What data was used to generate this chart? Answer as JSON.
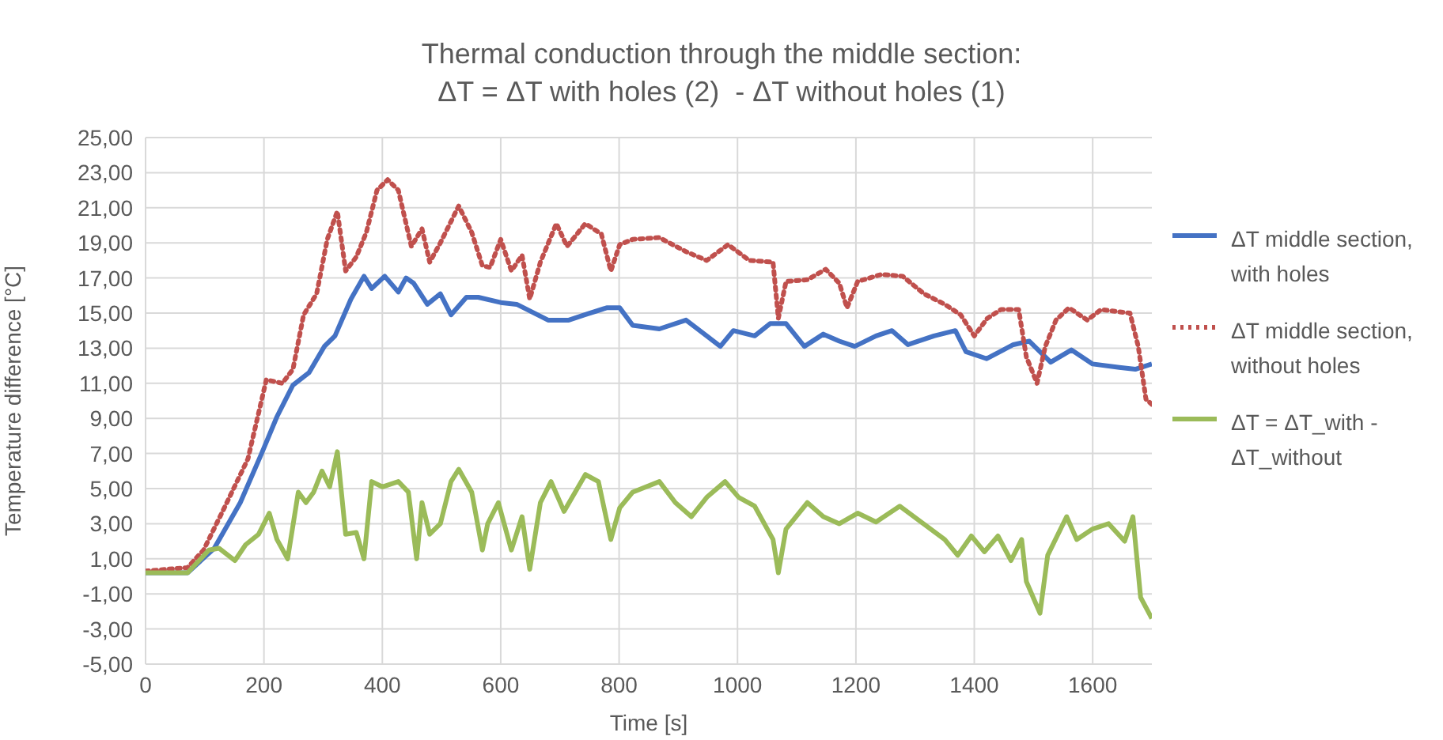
{
  "chart_data": {
    "type": "line",
    "title": "Thermal conduction through the middle section:",
    "subtitle": "ΔT = ΔT with holes (2)  - ΔT without holes (1)",
    "xlabel": "Time [s]",
    "ylabel": "Temperature difference [°C]",
    "xlim": [
      0,
      1700
    ],
    "xticks": [
      0,
      200,
      400,
      600,
      800,
      1000,
      1200,
      1400,
      1600
    ],
    "ylim": [
      -5,
      25
    ],
    "yticks": [
      {
        "value": -5,
        "label": "-5,00"
      },
      {
        "value": -3,
        "label": "-3,00"
      },
      {
        "value": -1,
        "label": "-1,00"
      },
      {
        "value": 1,
        "label": "1,00"
      },
      {
        "value": 3,
        "label": "3,00"
      },
      {
        "value": 5,
        "label": "5,00"
      },
      {
        "value": 7,
        "label": "7,00"
      },
      {
        "value": 9,
        "label": "9,00"
      },
      {
        "value": 11,
        "label": "11,00"
      },
      {
        "value": 13,
        "label": "13,00"
      },
      {
        "value": 15,
        "label": "15,00"
      },
      {
        "value": 17,
        "label": "17,00"
      },
      {
        "value": 19,
        "label": "19,00"
      },
      {
        "value": 21,
        "label": "21,00"
      },
      {
        "value": 23,
        "label": "23,00"
      },
      {
        "value": 25,
        "label": "25,00"
      }
    ],
    "grid": true,
    "legend": "right",
    "marker": "none",
    "series": [
      {
        "name": "ΔT middle section, with holes",
        "color": "#4472c4",
        "line_style": "solid",
        "x": [
          0,
          71,
          116,
          160,
          196,
          222,
          249,
          276,
          302,
          320,
          347,
          369,
          382,
          404,
          427,
          440,
          453,
          476,
          498,
          516,
          542,
          562,
          600,
          627,
          680,
          715,
          742,
          779,
          801,
          823,
          868,
          913,
          948,
          971,
          993,
          1029,
          1055,
          1082,
          1113,
          1145,
          1172,
          1198,
          1234,
          1261,
          1288,
          1332,
          1368,
          1386,
          1421,
          1466,
          1493,
          1529,
          1564,
          1600,
          1645,
          1672,
          1700
        ],
        "values": [
          0.2,
          0.2,
          1.6,
          4.2,
          7.0,
          9.1,
          10.9,
          11.6,
          13.1,
          13.7,
          15.8,
          17.1,
          16.4,
          17.1,
          16.2,
          17.0,
          16.7,
          15.5,
          16.1,
          14.9,
          15.9,
          15.9,
          15.6,
          15.5,
          14.6,
          14.6,
          14.9,
          15.3,
          15.3,
          14.3,
          14.1,
          14.6,
          13.7,
          13.1,
          14.0,
          13.7,
          14.4,
          14.4,
          13.1,
          13.8,
          13.4,
          13.1,
          13.7,
          14.0,
          13.2,
          13.7,
          14.0,
          12.8,
          12.4,
          13.2,
          13.4,
          12.2,
          12.9,
          12.1,
          11.9,
          11.8,
          12.1
        ]
      },
      {
        "name": "ΔT middle section, without holes",
        "color": "#c0504d",
        "line_style": "dotted",
        "x": [
          0,
          71,
          98,
          133,
          173,
          204,
          231,
          249,
          267,
          289,
          307,
          324,
          338,
          356,
          373,
          391,
          409,
          427,
          449,
          467,
          480,
          498,
          529,
          551,
          569,
          582,
          600,
          618,
          636,
          649,
          667,
          694,
          712,
          743,
          770,
          786,
          801,
          823,
          868,
          913,
          948,
          984,
          1020,
          1060,
          1069,
          1082,
          1118,
          1149,
          1172,
          1185,
          1203,
          1243,
          1279,
          1315,
          1350,
          1377,
          1400,
          1422,
          1445,
          1475,
          1488,
          1506,
          1520,
          1538,
          1560,
          1591,
          1614,
          1663,
          1677,
          1690,
          1700
        ],
        "values": [
          0.3,
          0.5,
          1.5,
          3.9,
          6.7,
          11.2,
          11.0,
          11.8,
          14.9,
          16.1,
          19.2,
          20.8,
          17.4,
          18.2,
          19.6,
          22.0,
          22.6,
          22.0,
          18.8,
          19.8,
          17.9,
          19.0,
          21.1,
          19.6,
          17.7,
          17.6,
          19.2,
          17.4,
          18.3,
          15.8,
          17.9,
          20.1,
          18.8,
          20.1,
          19.5,
          17.4,
          18.9,
          19.2,
          19.3,
          18.5,
          18.0,
          18.9,
          18.0,
          17.9,
          14.7,
          16.8,
          16.9,
          17.5,
          16.7,
          15.3,
          16.8,
          17.2,
          17.1,
          16.1,
          15.5,
          14.9,
          13.7,
          14.7,
          15.2,
          15.2,
          12.5,
          11.0,
          13.1,
          14.6,
          15.3,
          14.6,
          15.2,
          15.0,
          13.1,
          10.1,
          9.8
        ]
      },
      {
        "name": "ΔT = ΔT_with - ΔT_without",
        "color": "#9bbb59",
        "line_style": "solid",
        "x": [
          0,
          71,
          107,
          124,
          151,
          169,
          191,
          209,
          222,
          240,
          258,
          271,
          284,
          298,
          311,
          324,
          338,
          356,
          369,
          382,
          400,
          427,
          444,
          458,
          467,
          480,
          498,
          516,
          529,
          551,
          569,
          578,
          596,
          618,
          636,
          649,
          667,
          685,
          707,
          743,
          765,
          786,
          801,
          823,
          868,
          895,
          922,
          948,
          979,
          1002,
          1029,
          1060,
          1069,
          1082,
          1118,
          1145,
          1172,
          1203,
          1234,
          1274,
          1314,
          1350,
          1372,
          1395,
          1417,
          1440,
          1462,
          1480,
          1488,
          1511,
          1524,
          1556,
          1573,
          1600,
          1627,
          1654,
          1668,
          1681,
          1700
        ],
        "values": [
          0.2,
          0.2,
          1.5,
          1.6,
          0.9,
          1.8,
          2.4,
          3.6,
          2.1,
          1.0,
          4.8,
          4.2,
          4.8,
          6.0,
          5.1,
          7.1,
          2.4,
          2.5,
          1.0,
          5.4,
          5.1,
          5.4,
          4.8,
          1.0,
          4.2,
          2.4,
          3.0,
          5.4,
          6.1,
          4.8,
          1.5,
          3.0,
          4.2,
          1.5,
          3.4,
          0.4,
          4.2,
          5.4,
          3.7,
          5.8,
          5.4,
          2.1,
          3.9,
          4.8,
          5.4,
          4.2,
          3.4,
          4.5,
          5.4,
          4.5,
          4.0,
          2.1,
          0.2,
          2.7,
          4.2,
          3.4,
          3.0,
          3.6,
          3.1,
          4.0,
          3.0,
          2.1,
          1.2,
          2.3,
          1.4,
          2.3,
          0.9,
          2.1,
          -0.3,
          -2.1,
          1.2,
          3.4,
          2.1,
          2.7,
          3.0,
          2.0,
          3.4,
          -1.2,
          -2.4
        ]
      }
    ]
  }
}
